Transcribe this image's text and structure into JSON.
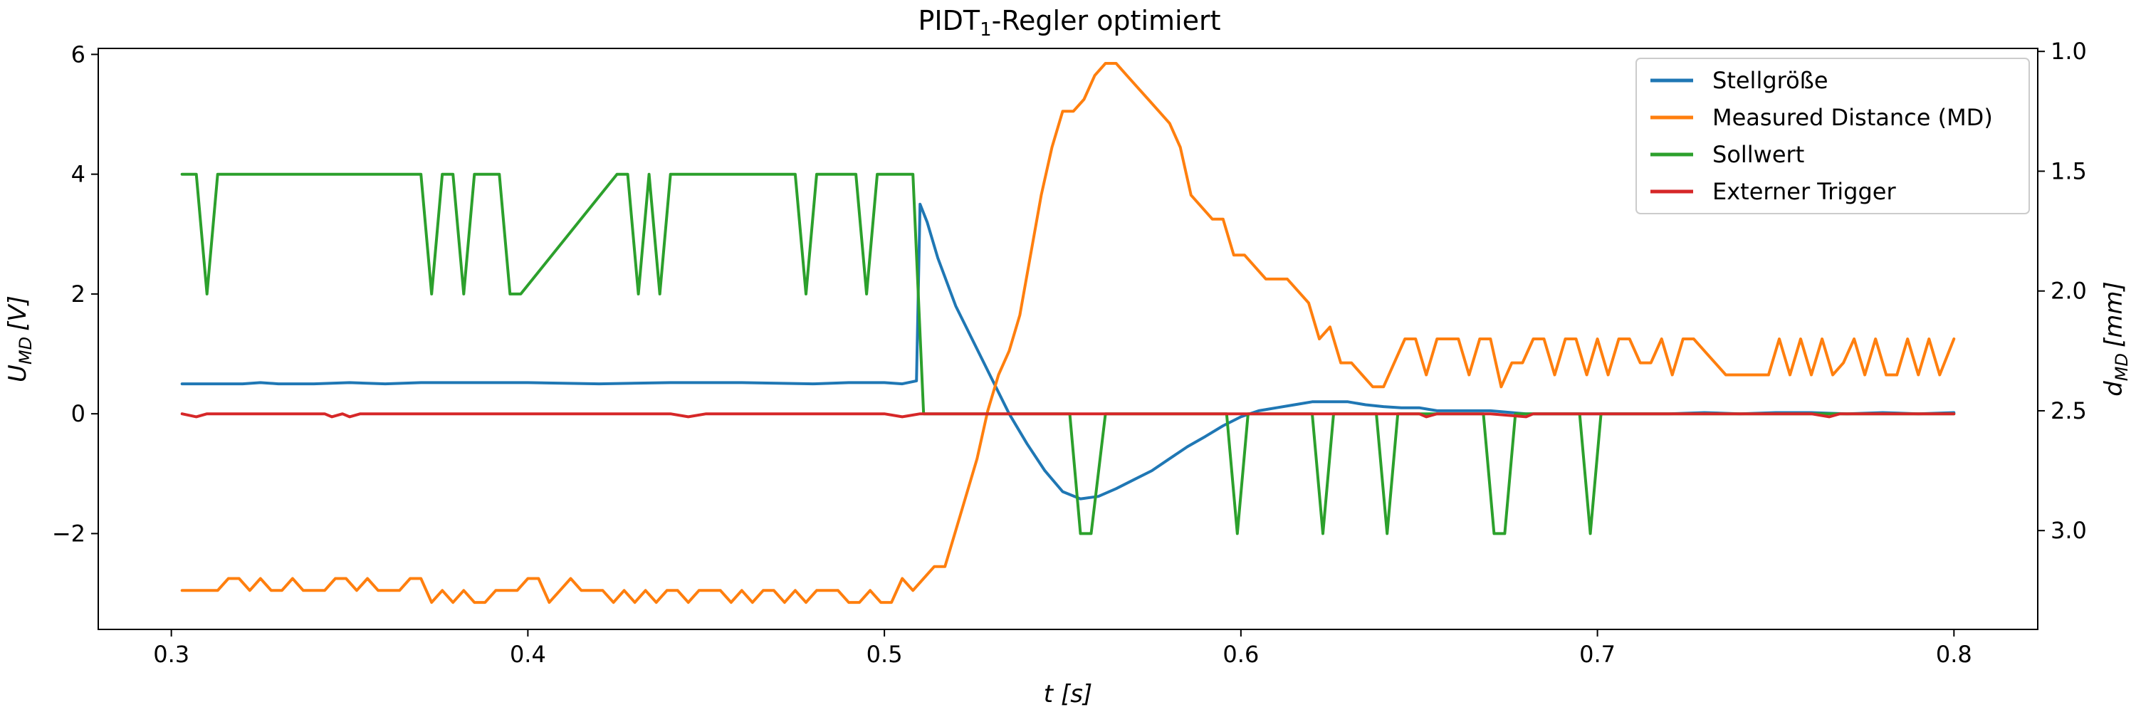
{
  "chart_data": {
    "type": "line",
    "title": {
      "main": "PIDT",
      "sub": "1",
      "suffix": "-Regler optimiert"
    },
    "xlabel": {
      "var": "t",
      "unit": "[s]"
    },
    "ylabel_left": {
      "var": "U",
      "sub": "MD",
      "unit": "[V]"
    },
    "ylabel_right": {
      "var": "d",
      "sub": "MD",
      "unit": "[mm]"
    },
    "xlim": [
      0.2795,
      0.8235
    ],
    "ylim_left": [
      -3.6,
      6.1
    ],
    "ylim_right": [
      3.4125,
      0.9875
    ],
    "x_ticks": [
      0.3,
      0.4,
      0.5,
      0.6,
      0.7,
      0.8
    ],
    "x_tick_labels": [
      "0.3",
      "0.4",
      "0.5",
      "0.6",
      "0.7",
      "0.8"
    ],
    "y_left_ticks": [
      -2,
      0,
      2,
      4,
      6
    ],
    "y_left_tick_labels": [
      "−2",
      "0",
      "2",
      "4",
      "6"
    ],
    "y_right_ticks": [
      1.0,
      1.5,
      2.0,
      2.5,
      3.0
    ],
    "y_right_tick_labels": [
      "1.0",
      "1.5",
      "2.0",
      "2.5",
      "3.0"
    ],
    "grid": false,
    "legend_position": "top-right",
    "series": [
      {
        "name": "Stellgröße",
        "color": "#1f77b4",
        "axis": "left",
        "x": [
          0.303,
          0.31,
          0.32,
          0.325,
          0.33,
          0.34,
          0.35,
          0.36,
          0.37,
          0.38,
          0.4,
          0.42,
          0.44,
          0.46,
          0.48,
          0.49,
          0.5,
          0.505,
          0.509,
          0.51,
          0.512,
          0.515,
          0.52,
          0.525,
          0.53,
          0.535,
          0.54,
          0.545,
          0.55,
          0.555,
          0.56,
          0.565,
          0.57,
          0.575,
          0.58,
          0.585,
          0.59,
          0.595,
          0.6,
          0.605,
          0.61,
          0.615,
          0.62,
          0.625,
          0.63,
          0.635,
          0.64,
          0.645,
          0.65,
          0.655,
          0.66,
          0.67,
          0.68,
          0.69,
          0.7,
          0.71,
          0.72,
          0.73,
          0.74,
          0.75,
          0.76,
          0.77,
          0.78,
          0.79,
          0.8
        ],
        "y": [
          0.5,
          0.5,
          0.5,
          0.52,
          0.5,
          0.5,
          0.52,
          0.5,
          0.52,
          0.52,
          0.52,
          0.5,
          0.52,
          0.52,
          0.5,
          0.52,
          0.52,
          0.5,
          0.55,
          3.5,
          3.2,
          2.6,
          1.8,
          1.2,
          0.6,
          0.0,
          -0.5,
          -0.95,
          -1.3,
          -1.42,
          -1.38,
          -1.25,
          -1.1,
          -0.95,
          -0.75,
          -0.55,
          -0.38,
          -0.2,
          -0.05,
          0.05,
          0.1,
          0.15,
          0.2,
          0.2,
          0.2,
          0.15,
          0.12,
          0.1,
          0.1,
          0.05,
          0.05,
          0.05,
          0.0,
          0.0,
          0.0,
          0.0,
          0.0,
          0.02,
          0.0,
          0.02,
          0.02,
          0.0,
          0.02,
          0.0,
          0.02
        ]
      },
      {
        "name": "Measured Distance (MD)",
        "color": "#ff7f0e",
        "axis": "right",
        "x": [
          0.303,
          0.308,
          0.313,
          0.316,
          0.319,
          0.322,
          0.325,
          0.328,
          0.331,
          0.334,
          0.337,
          0.34,
          0.343,
          0.346,
          0.349,
          0.352,
          0.355,
          0.358,
          0.361,
          0.364,
          0.367,
          0.37,
          0.373,
          0.376,
          0.379,
          0.382,
          0.385,
          0.388,
          0.391,
          0.394,
          0.397,
          0.4,
          0.403,
          0.406,
          0.409,
          0.412,
          0.415,
          0.418,
          0.421,
          0.424,
          0.427,
          0.43,
          0.433,
          0.436,
          0.439,
          0.442,
          0.445,
          0.448,
          0.451,
          0.454,
          0.457,
          0.46,
          0.463,
          0.466,
          0.469,
          0.472,
          0.475,
          0.478,
          0.481,
          0.484,
          0.487,
          0.49,
          0.493,
          0.496,
          0.499,
          0.502,
          0.505,
          0.508,
          0.511,
          0.514,
          0.517,
          0.52,
          0.523,
          0.526,
          0.529,
          0.532,
          0.535,
          0.538,
          0.541,
          0.544,
          0.547,
          0.55,
          0.553,
          0.556,
          0.559,
          0.562,
          0.565,
          0.568,
          0.571,
          0.574,
          0.577,
          0.58,
          0.583,
          0.586,
          0.589,
          0.592,
          0.595,
          0.598,
          0.601,
          0.604,
          0.607,
          0.61,
          0.613,
          0.616,
          0.619,
          0.622,
          0.625,
          0.628,
          0.631,
          0.634,
          0.637,
          0.64,
          0.643,
          0.646,
          0.649,
          0.652,
          0.655,
          0.658,
          0.661,
          0.664,
          0.667,
          0.67,
          0.673,
          0.676,
          0.679,
          0.682,
          0.685,
          0.688,
          0.691,
          0.694,
          0.697,
          0.7,
          0.703,
          0.706,
          0.709,
          0.712,
          0.715,
          0.718,
          0.721,
          0.724,
          0.727,
          0.73,
          0.733,
          0.736,
          0.739,
          0.742,
          0.745,
          0.748,
          0.751,
          0.754,
          0.757,
          0.76,
          0.763,
          0.766,
          0.769,
          0.772,
          0.775,
          0.778,
          0.781,
          0.784,
          0.787,
          0.79,
          0.793,
          0.796,
          0.8
        ],
        "y": [
          3.25,
          3.25,
          3.25,
          3.2,
          3.2,
          3.25,
          3.2,
          3.25,
          3.25,
          3.2,
          3.25,
          3.25,
          3.25,
          3.2,
          3.2,
          3.25,
          3.2,
          3.25,
          3.25,
          3.25,
          3.2,
          3.2,
          3.3,
          3.25,
          3.3,
          3.25,
          3.3,
          3.3,
          3.25,
          3.25,
          3.25,
          3.2,
          3.2,
          3.3,
          3.25,
          3.2,
          3.25,
          3.25,
          3.25,
          3.3,
          3.25,
          3.3,
          3.25,
          3.3,
          3.25,
          3.25,
          3.3,
          3.25,
          3.25,
          3.25,
          3.3,
          3.25,
          3.3,
          3.25,
          3.25,
          3.3,
          3.25,
          3.3,
          3.25,
          3.25,
          3.25,
          3.3,
          3.3,
          3.25,
          3.3,
          3.3,
          3.2,
          3.25,
          3.2,
          3.15,
          3.15,
          3.0,
          2.85,
          2.7,
          2.5,
          2.35,
          2.25,
          2.1,
          1.85,
          1.6,
          1.4,
          1.25,
          1.25,
          1.2,
          1.1,
          1.05,
          1.05,
          1.1,
          1.15,
          1.2,
          1.25,
          1.3,
          1.4,
          1.6,
          1.65,
          1.7,
          1.7,
          1.85,
          1.85,
          1.9,
          1.95,
          1.95,
          1.95,
          2.0,
          2.05,
          2.2,
          2.15,
          2.3,
          2.3,
          2.35,
          2.4,
          2.4,
          2.3,
          2.2,
          2.2,
          2.35,
          2.2,
          2.2,
          2.2,
          2.35,
          2.2,
          2.2,
          2.4,
          2.3,
          2.3,
          2.2,
          2.2,
          2.35,
          2.2,
          2.2,
          2.35,
          2.2,
          2.35,
          2.2,
          2.2,
          2.3,
          2.3,
          2.2,
          2.35,
          2.2,
          2.2,
          2.25,
          2.3,
          2.35,
          2.35,
          2.35,
          2.35,
          2.35,
          2.2,
          2.35,
          2.2,
          2.35,
          2.2,
          2.35,
          2.3,
          2.2,
          2.35,
          2.2,
          2.35,
          2.35,
          2.2,
          2.35,
          2.2,
          2.35,
          2.2
        ]
      },
      {
        "name": "Sollwert",
        "color": "#2ca02c",
        "axis": "left",
        "x": [
          0.303,
          0.307,
          0.31,
          0.313,
          0.35,
          0.37,
          0.373,
          0.376,
          0.379,
          0.382,
          0.385,
          0.392,
          0.395,
          0.398,
          0.425,
          0.428,
          0.431,
          0.434,
          0.437,
          0.44,
          0.443,
          0.475,
          0.478,
          0.481,
          0.484,
          0.492,
          0.495,
          0.498,
          0.508,
          0.511,
          0.515,
          0.549,
          0.552,
          0.555,
          0.558,
          0.562,
          0.596,
          0.599,
          0.602,
          0.62,
          0.623,
          0.626,
          0.638,
          0.641,
          0.644,
          0.668,
          0.671,
          0.674,
          0.677,
          0.695,
          0.698,
          0.701,
          0.8
        ],
        "y": [
          4,
          4,
          2,
          4,
          4,
          4,
          2,
          4,
          4,
          2,
          4,
          4,
          2,
          2,
          4,
          4,
          2,
          4,
          2,
          4,
          4,
          4,
          2,
          4,
          4,
          4,
          2,
          4,
          4,
          0,
          0,
          0,
          0,
          -2,
          -2,
          0,
          0,
          -2,
          0,
          0,
          -2,
          0,
          0,
          -2,
          0,
          0,
          -2,
          -2,
          0,
          0,
          -2,
          0,
          0
        ]
      },
      {
        "name": "Externer Trigger",
        "color": "#d62728",
        "axis": "left",
        "x": [
          0.303,
          0.307,
          0.31,
          0.313,
          0.343,
          0.345,
          0.348,
          0.35,
          0.353,
          0.43,
          0.44,
          0.445,
          0.45,
          0.5,
          0.505,
          0.51,
          0.515,
          0.525,
          0.65,
          0.652,
          0.655,
          0.66,
          0.67,
          0.68,
          0.682,
          0.76,
          0.765,
          0.768,
          0.8
        ],
        "y": [
          0,
          -0.05,
          0,
          0,
          0,
          -0.05,
          0,
          -0.05,
          0,
          0,
          0,
          -0.05,
          0,
          0,
          -0.05,
          0,
          0,
          0,
          0,
          -0.05,
          0,
          0,
          0,
          -0.05,
          0,
          0,
          -0.05,
          0,
          0
        ]
      }
    ]
  }
}
